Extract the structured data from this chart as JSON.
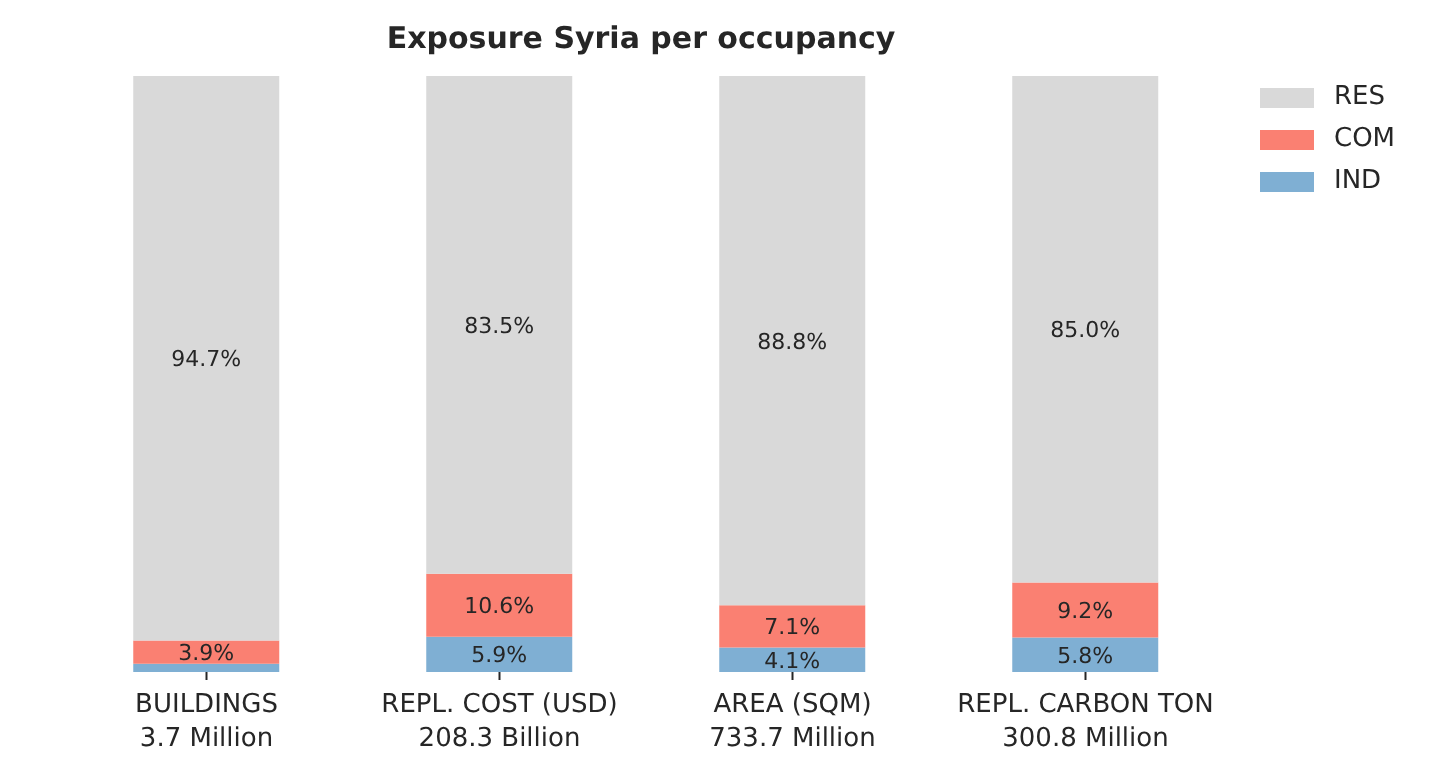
{
  "chart_data": {
    "type": "bar",
    "title": "Exposure Syria per occupancy",
    "stacked": true,
    "categories": [
      "BUILDINGS\n3.7 Million",
      "REPL. COST (USD)\n208.3 Billion",
      "AREA (SQM)\n733.7 Million",
      "REPL. CARBON TON\n300.8 Million"
    ],
    "series": [
      {
        "name": "IND",
        "color": "#7fafd3",
        "values": [
          1.4,
          5.9,
          4.1,
          5.8
        ],
        "value_labels": [
          null,
          "5.9%",
          "4.1%",
          "5.8%"
        ]
      },
      {
        "name": "COM",
        "color": "#fa8072",
        "values": [
          3.9,
          10.6,
          7.1,
          9.2
        ],
        "value_labels": [
          "3.9%",
          "10.6%",
          "7.1%",
          "9.2%"
        ]
      },
      {
        "name": "RES",
        "color": "#d9d9d9",
        "values": [
          94.7,
          83.5,
          88.8,
          85.0
        ],
        "value_labels": [
          "94.7%",
          "83.5%",
          "88.8%",
          "85.0%"
        ]
      }
    ],
    "legend": "top right"
  }
}
